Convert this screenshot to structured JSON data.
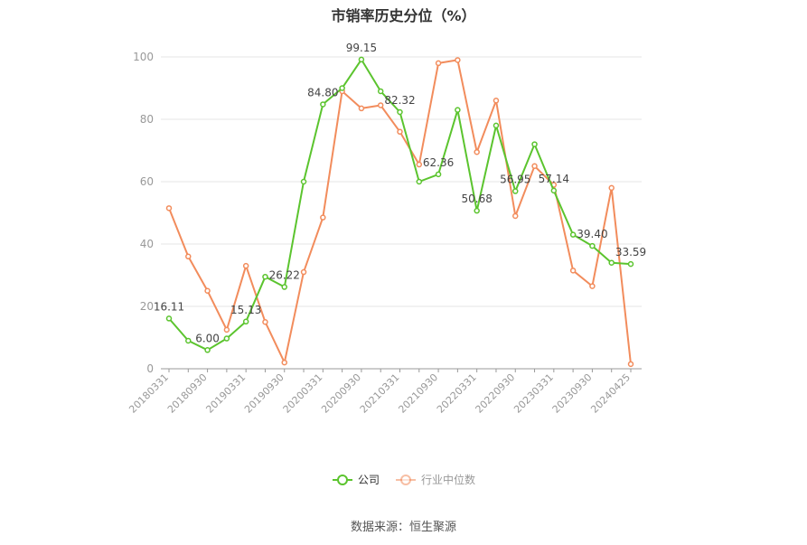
{
  "chart_data": {
    "type": "line",
    "title": "市销率历史分位（%）",
    "source": "数据来源：恒生聚源",
    "ylim": [
      0,
      100
    ],
    "yticks": [
      0,
      20,
      40,
      60,
      80,
      100
    ],
    "grid": true,
    "legend_position": "bottom",
    "x_tick_labels": [
      "20180331",
      "20180930",
      "20190331",
      "20190930",
      "20200331",
      "20200930",
      "20210331",
      "20210930",
      "20220331",
      "20220930",
      "20230331",
      "20230930",
      "20240425"
    ],
    "series": [
      {
        "name": "公司",
        "color": "#5bc42e",
        "values": [
          16.11,
          9.0,
          6.0,
          9.7,
          15.13,
          29.5,
          26.22,
          60.0,
          84.8,
          90.0,
          99.15,
          89.0,
          82.32,
          60.0,
          62.36,
          83.0,
          50.68,
          78.0,
          56.95,
          72.0,
          57.14,
          43.0,
          39.4,
          34.0,
          33.59
        ],
        "labels": {
          "0": "16.11",
          "2": "6.00",
          "4": "15.13",
          "6": "26.22",
          "8": "84.80",
          "10": "99.15",
          "12": "82.32",
          "14": "62.36",
          "16": "50.68",
          "18": "56.95",
          "20": "57.14",
          "22": "39.40",
          "24": "33.59"
        }
      },
      {
        "name": "行业中位数",
        "color": "#f28c5c",
        "values": [
          51.5,
          36.0,
          25.0,
          12.5,
          33.0,
          15.0,
          2.0,
          31.0,
          48.5,
          89.0,
          83.5,
          84.5,
          76.0,
          65.5,
          98.0,
          99.0,
          69.5,
          86.0,
          49.0,
          65.0,
          59.0,
          31.5,
          26.5,
          58.0,
          1.5
        ]
      }
    ]
  }
}
